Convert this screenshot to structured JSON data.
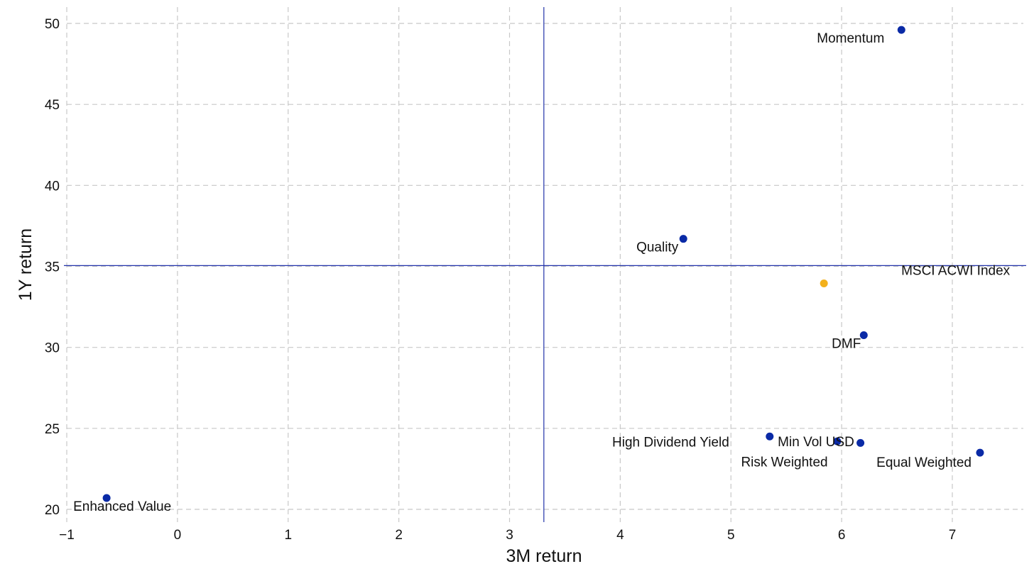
{
  "chart_data": {
    "type": "scatter",
    "xlabel": "3M return",
    "ylabel": "1Y return",
    "xlim": [
      -1,
      7.65
    ],
    "ylim": [
      19.4,
      51
    ],
    "xticks": [
      -1,
      0,
      1,
      2,
      3,
      4,
      5,
      6,
      7
    ],
    "xtick_labels": [
      "−1",
      "0",
      "1",
      "2",
      "3",
      "4",
      "5",
      "6",
      "7"
    ],
    "yticks": [
      20,
      25,
      30,
      35,
      40,
      45,
      50
    ],
    "ytick_labels": [
      "20",
      "25",
      "30",
      "35",
      "40",
      "45",
      "50"
    ],
    "grid": true,
    "reference_lines": {
      "x": 3.31,
      "y": 35.05,
      "color": "#2233aa"
    },
    "colors": {
      "factor": "#0a2aa6",
      "index": "#f3b11c",
      "text": "#111111",
      "grid": "#c8c8c8"
    },
    "points": [
      {
        "label": "Momentum",
        "x": 6.54,
        "y": 49.6,
        "group": "factor",
        "anchor": "end",
        "dx": -24,
        "dy": 18
      },
      {
        "label": "Quality",
        "x": 4.57,
        "y": 36.7,
        "group": "factor",
        "anchor": "end",
        "dx": -7,
        "dy": 18
      },
      {
        "label": "MSCI ACWI Index",
        "x": 5.84,
        "y": 33.95,
        "group": "index",
        "anchor": "end",
        "dx": 262,
        "dy": -12
      },
      {
        "label": "DMF",
        "x": 6.2,
        "y": 30.75,
        "group": "factor",
        "anchor": "end",
        "dx": -4,
        "dy": 18
      },
      {
        "label": "High Dividend Yield",
        "x": 5.35,
        "y": 24.5,
        "group": "factor",
        "anchor": "end",
        "dx": -57,
        "dy": 14
      },
      {
        "label": "Min Vol USD",
        "x": 5.96,
        "y": 24.2,
        "group": "factor",
        "anchor": "end",
        "dx": 24,
        "dy": 7
      },
      {
        "label": "Risk Weighted",
        "x": 6.17,
        "y": 24.1,
        "group": "factor",
        "anchor": "end",
        "dx": -46,
        "dy": 33
      },
      {
        "label": "Equal Weighted",
        "x": 7.25,
        "y": 23.5,
        "group": "factor",
        "anchor": "end",
        "dx": -12,
        "dy": 20
      },
      {
        "label": "Enhanced Value",
        "x": -0.64,
        "y": 20.7,
        "group": "factor",
        "anchor": "start",
        "dx": -47,
        "dy": 18
      }
    ]
  }
}
